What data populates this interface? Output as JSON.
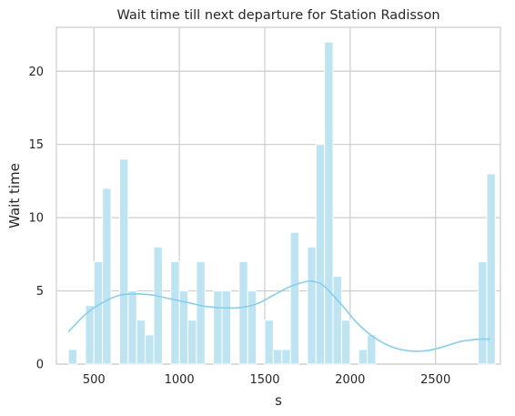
{
  "chart_data": {
    "type": "bar",
    "title": "Wait time till next departure for Station Radisson",
    "xlabel": "s",
    "ylabel": "Wait time",
    "xlim": [
      280,
      2880
    ],
    "ylim": [
      0,
      23
    ],
    "x_ticks": [
      500,
      1000,
      1500,
      2000,
      2500
    ],
    "y_ticks": [
      0,
      5,
      10,
      15,
      20
    ],
    "x_tick_labels": [
      "500",
      "1000",
      "1500",
      "2000",
      "2500"
    ],
    "y_tick_labels": [
      "0",
      "5",
      "10",
      "15",
      "20"
    ],
    "bin_width": 50,
    "bins": [
      {
        "x": 350,
        "count": 1
      },
      {
        "x": 450,
        "count": 4
      },
      {
        "x": 500,
        "count": 7
      },
      {
        "x": 550,
        "count": 12
      },
      {
        "x": 650,
        "count": 14
      },
      {
        "x": 700,
        "count": 5
      },
      {
        "x": 750,
        "count": 3
      },
      {
        "x": 800,
        "count": 2
      },
      {
        "x": 850,
        "count": 8
      },
      {
        "x": 950,
        "count": 7
      },
      {
        "x": 1000,
        "count": 5
      },
      {
        "x": 1050,
        "count": 3
      },
      {
        "x": 1100,
        "count": 7
      },
      {
        "x": 1200,
        "count": 5
      },
      {
        "x": 1250,
        "count": 5
      },
      {
        "x": 1350,
        "count": 7
      },
      {
        "x": 1400,
        "count": 5
      },
      {
        "x": 1500,
        "count": 3
      },
      {
        "x": 1550,
        "count": 1
      },
      {
        "x": 1600,
        "count": 1
      },
      {
        "x": 1650,
        "count": 9
      },
      {
        "x": 1750,
        "count": 8
      },
      {
        "x": 1800,
        "count": 15
      },
      {
        "x": 1850,
        "count": 22
      },
      {
        "x": 1900,
        "count": 6
      },
      {
        "x": 1950,
        "count": 3
      },
      {
        "x": 2050,
        "count": 1
      },
      {
        "x": 2100,
        "count": 2
      },
      {
        "x": 2750,
        "count": 7
      },
      {
        "x": 2800,
        "count": 13
      }
    ],
    "kde": {
      "x": [
        350,
        450,
        550,
        650,
        750,
        850,
        950,
        1050,
        1150,
        1250,
        1350,
        1450,
        1550,
        1650,
        1750,
        1800,
        1850,
        1950,
        2050,
        2150,
        2250,
        2350,
        2450,
        2550,
        2650,
        2750,
        2820
      ],
      "y": [
        2.2,
        3.4,
        4.2,
        4.7,
        4.8,
        4.7,
        4.45,
        4.2,
        3.95,
        3.85,
        3.85,
        4.1,
        4.7,
        5.3,
        5.65,
        5.6,
        5.3,
        4.05,
        2.7,
        1.75,
        1.15,
        0.9,
        0.92,
        1.2,
        1.55,
        1.7,
        1.7
      ]
    },
    "colors": {
      "bar_fill": "#bfe4f1",
      "bar_stroke": "#ffffff",
      "kde_line": "#87ceeb",
      "grid": "#cccccc",
      "text": "#262626"
    },
    "grid": true,
    "legend": "none"
  }
}
